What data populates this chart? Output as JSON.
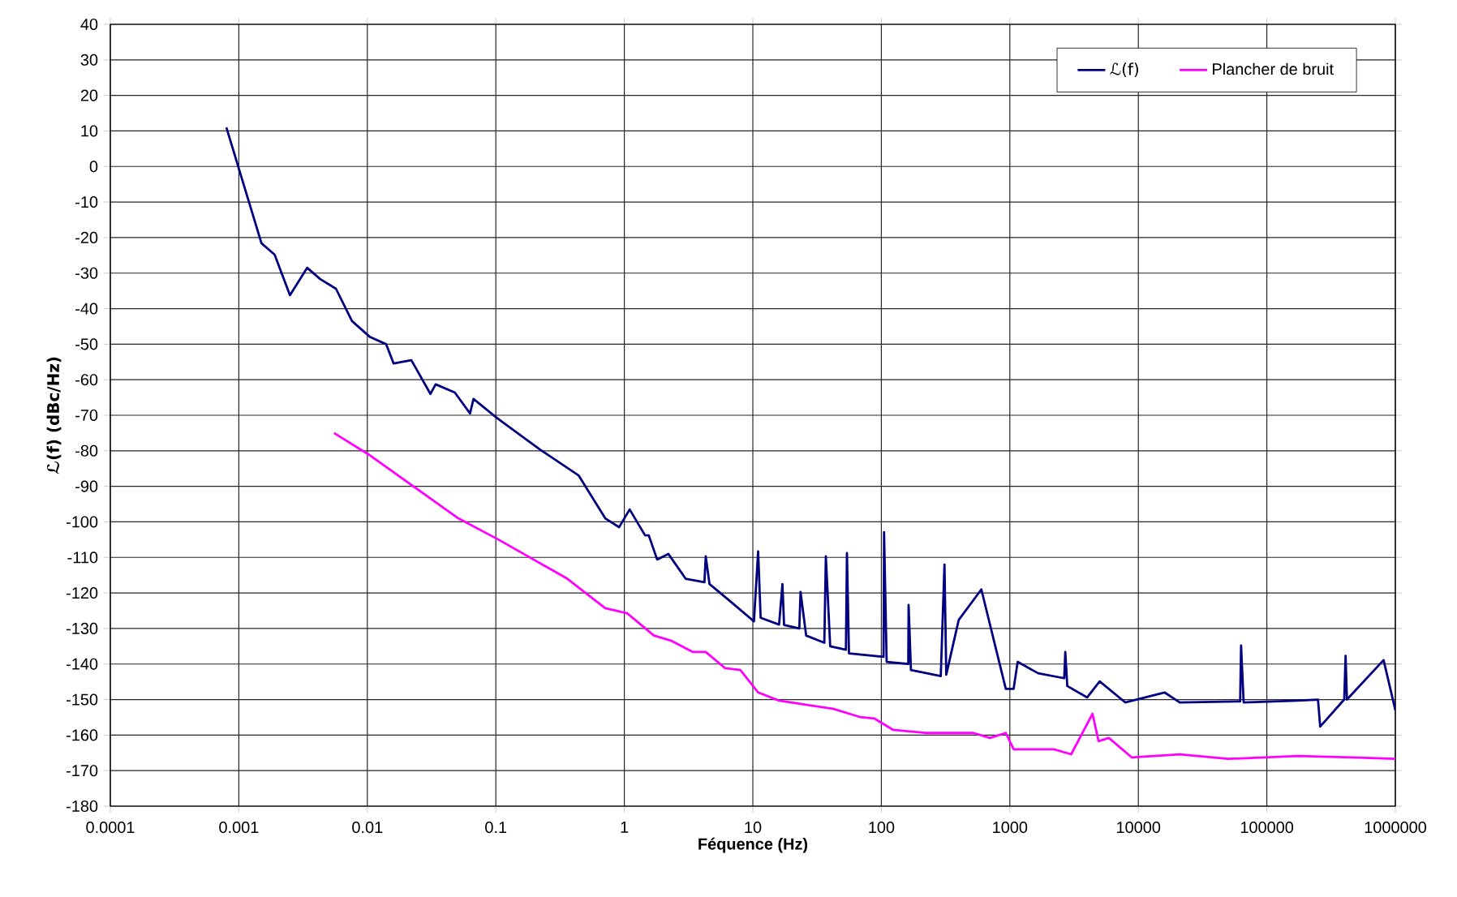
{
  "chart_data": {
    "type": "line",
    "xlabel": "Féquence (Hz)",
    "ylabel": "ℒ(f) (dBc/Hz)",
    "log": "x",
    "grid": true,
    "legend": "top right",
    "marker": "none",
    "line_style": "solid",
    "xlim": [
      0.0001,
      1000000
    ],
    "xticks": [
      0.0001,
      0.001,
      0.01,
      0.1,
      1,
      10,
      100,
      1000,
      10000,
      100000,
      1000000
    ],
    "ylim": [
      -180,
      40
    ],
    "yticks": [
      -180,
      -170,
      -160,
      -150,
      -140,
      -130,
      -120,
      -110,
      -100,
      -90,
      -80,
      -70,
      -60,
      -50,
      -40,
      -30,
      -20,
      -10,
      0,
      10,
      20,
      30,
      40
    ],
    "series": [
      {
        "name": "ℒ(f)",
        "color": "#000080",
        "x": [
          0.0008,
          0.0015,
          0.0019,
          0.0025,
          0.0034,
          0.0043,
          0.0057,
          0.0076,
          0.0105,
          0.014,
          0.016,
          0.022,
          0.031,
          0.034,
          0.048,
          0.063,
          0.067,
          0.104,
          0.22,
          0.44,
          0.71,
          0.91,
          1.1,
          1.45,
          1.55,
          1.8,
          2.2,
          3,
          4.2,
          4.3,
          4.6,
          6.5,
          10.2,
          11,
          11.5,
          16,
          17,
          17.5,
          23,
          23.5,
          26,
          36,
          37,
          40,
          53,
          54,
          56,
          104,
          105,
          110,
          162,
          163,
          170,
          290,
          310,
          320,
          400,
          600,
          930,
          1070,
          1150,
          1660,
          2650,
          2700,
          2800,
          4000,
          5000,
          7900,
          16000,
          21000,
          62000,
          63000,
          66000,
          174000,
          250000,
          260000,
          400000,
          410000,
          420000,
          810000,
          1000000
        ],
        "values": [
          11,
          -21.6,
          -24.8,
          -36.2,
          -28.5,
          -31.7,
          -34.4,
          -43.5,
          -48,
          -50,
          -55.4,
          -54.5,
          -64,
          -61.3,
          -63.6,
          -69.5,
          -65.4,
          -71,
          -79.6,
          -86.9,
          -99,
          -101.5,
          -96.5,
          -103.8,
          -103.8,
          -110.6,
          -109,
          -116,
          -117,
          -109.7,
          -117.5,
          -122,
          -128,
          -108.3,
          -127,
          -128.9,
          -117.5,
          -129,
          -130,
          -119.7,
          -132,
          -134,
          -109.7,
          -135,
          -136,
          -108.8,
          -137,
          -138,
          -102.9,
          -139.4,
          -140,
          -123.4,
          -141.7,
          -143.4,
          -112,
          -143,
          -127.6,
          -119,
          -147,
          -147,
          -139.4,
          -142.6,
          -144,
          -136.6,
          -146.2,
          -149.4,
          -144.9,
          -150.8,
          -148,
          -150.8,
          -150.5,
          -134.8,
          -150.8,
          -150.3,
          -150,
          -157.6,
          -150,
          -137.7,
          -150,
          -138.9,
          -153
        ]
      },
      {
        "name": "Plancher de bruit",
        "color": "#ff00ff",
        "x": [
          0.0055,
          0.0102,
          0.051,
          0.105,
          0.36,
          0.71,
          1.05,
          1.7,
          2.3,
          3.4,
          4.3,
          6.1,
          8,
          11,
          16,
          42,
          68,
          88,
          123,
          220,
          520,
          700,
          930,
          1070,
          2200,
          3000,
          4400,
          4900,
          5900,
          8900,
          21000,
          50000,
          174000,
          460000,
          1000000
        ],
        "values": [
          -75,
          -81,
          -99,
          -105,
          -116,
          -124.3,
          -125.7,
          -132,
          -133.4,
          -136.6,
          -136.6,
          -141.2,
          -141.7,
          -148,
          -150.3,
          -152.6,
          -154.9,
          -155.3,
          -158.5,
          -159.4,
          -159.4,
          -160.8,
          -159.4,
          -164,
          -164,
          -165.4,
          -154,
          -161.7,
          -160.8,
          -166.3,
          -165.4,
          -166.7,
          -165.9,
          -166.3,
          -166.7
        ]
      }
    ]
  }
}
